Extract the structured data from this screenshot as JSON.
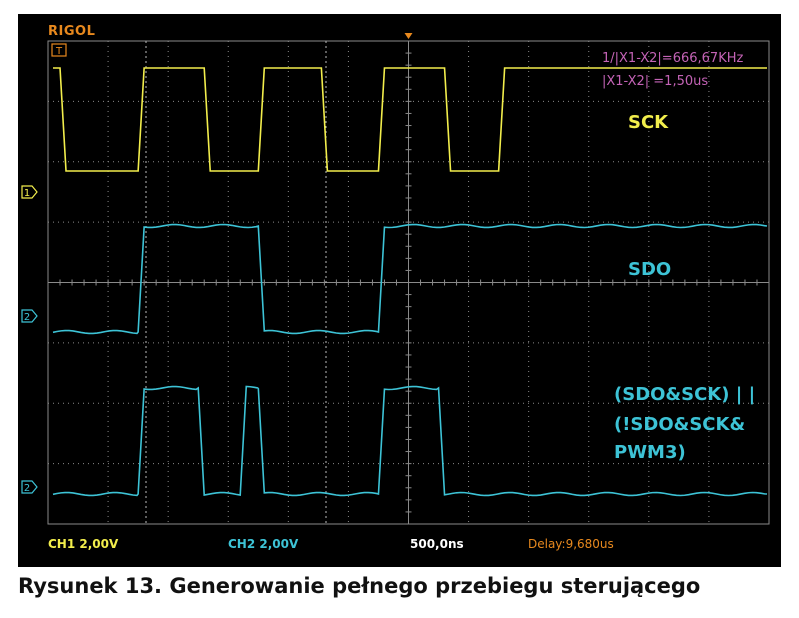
{
  "scope": {
    "brand": "RIGOL",
    "cursor_freq": "1/|X1-X2|=666,67KHz",
    "cursor_delta": "|X1-X2|   =1,50us",
    "ch1_scale": "CH1 2,00V",
    "ch2_scale": "CH2 2,00V",
    "timebase": "500,0ns",
    "delay": "Delay:9,680us",
    "trigger_marker": "T",
    "channel_markers": [
      "1",
      "2",
      "2"
    ]
  },
  "signals": {
    "sck": "SCK",
    "sdo": "SDO",
    "out_line1": "(SDO&SCK) | |",
    "out_line2": "(!SDO&SCK&",
    "out_line3": "PWM3)"
  },
  "caption": "Rysunek 13. Generowanie pełnego przebiegu sterującego",
  "colors": {
    "ch1": "#f2ee4c",
    "ch2": "#3dc3d6",
    "cursor": "#c463b6",
    "accent": "#e8891e",
    "grid": "#8a8a8a"
  },
  "traces": {
    "sck": {
      "high_start": true,
      "edges_divisions": [
        0.2,
        1.5,
        2.6,
        3.5,
        4.55,
        5.5,
        6.6,
        7.5
      ]
    },
    "sdo": {
      "high_start": false,
      "edges_divisions": [
        1.5,
        3.5,
        5.5
      ]
    },
    "out": {
      "high_start": false,
      "edges_divisions": [
        1.5,
        2.5,
        3.2,
        3.5,
        5.5,
        6.5
      ]
    }
  }
}
